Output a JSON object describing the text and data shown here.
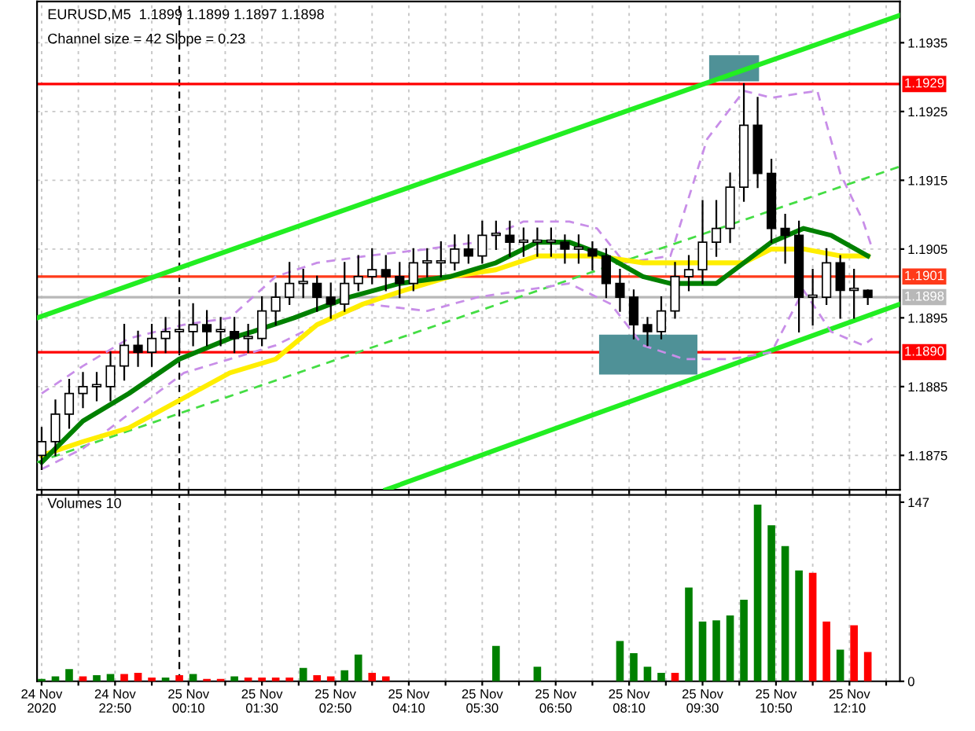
{
  "chart_data": [
    {
      "type": "candlestick",
      "title": "EURUSD,M5  1.1899 1.1899 1.1897 1.1898",
      "subtitle": "Channel size = 42 Slope = 0.23",
      "x": [
        "2020-11-24T21:30",
        "2020-11-24T21:45",
        "2020-11-24T22:00",
        "2020-11-24T22:15",
        "2020-11-24T22:30",
        "2020-11-24T22:45",
        "2020-11-24T23:00",
        "2020-11-24T23:15",
        "2020-11-24T23:30",
        "2020-11-24T23:45",
        "2020-11-25T00:00",
        "2020-11-25T00:15",
        "2020-11-25T00:30",
        "2020-11-25T00:45",
        "2020-11-25T01:00",
        "2020-11-25T01:15",
        "2020-11-25T01:30",
        "2020-11-25T01:45",
        "2020-11-25T02:00",
        "2020-11-25T02:15",
        "2020-11-25T02:30",
        "2020-11-25T02:45",
        "2020-11-25T03:00",
        "2020-11-25T03:15",
        "2020-11-25T03:30",
        "2020-11-25T03:45",
        "2020-11-25T04:00",
        "2020-11-25T04:15",
        "2020-11-25T04:30",
        "2020-11-25T04:45",
        "2020-11-25T05:00",
        "2020-11-25T05:15",
        "2020-11-25T05:30",
        "2020-11-25T05:45",
        "2020-11-25T06:00",
        "2020-11-25T06:15",
        "2020-11-25T06:30",
        "2020-11-25T06:45",
        "2020-11-25T07:00",
        "2020-11-25T07:15",
        "2020-11-25T07:30",
        "2020-11-25T07:45",
        "2020-11-25T08:00",
        "2020-11-25T08:15",
        "2020-11-25T08:30",
        "2020-11-25T08:45",
        "2020-11-25T09:00",
        "2020-11-25T09:15",
        "2020-11-25T09:30",
        "2020-11-25T09:45",
        "2020-11-25T10:00",
        "2020-11-25T10:15",
        "2020-11-25T10:30",
        "2020-11-25T10:45",
        "2020-11-25T11:00",
        "2020-11-25T11:15",
        "2020-11-25T11:30",
        "2020-11-25T11:45",
        "2020-11-25T12:00",
        "2020-11-25T12:15",
        "2020-11-25T12:30"
      ],
      "ohlc": [
        [
          1.1875,
          1.1879,
          1.1873,
          1.1877
        ],
        [
          1.1877,
          1.1883,
          1.1875,
          1.1881
        ],
        [
          1.1881,
          1.1886,
          1.1879,
          1.1884
        ],
        [
          1.1884,
          1.1887,
          1.1882,
          1.1885
        ],
        [
          1.1885,
          1.1887,
          1.1883,
          1.1885
        ],
        [
          1.1885,
          1.189,
          1.1883,
          1.1888
        ],
        [
          1.1888,
          1.1894,
          1.1886,
          1.1891
        ],
        [
          1.1891,
          1.1893,
          1.1888,
          1.189
        ],
        [
          1.189,
          1.1894,
          1.1888,
          1.1892
        ],
        [
          1.1892,
          1.1895,
          1.189,
          1.1893
        ],
        [
          1.1893,
          1.1896,
          1.189,
          1.1893
        ],
        [
          1.1893,
          1.1897,
          1.1891,
          1.1894
        ],
        [
          1.1894,
          1.1896,
          1.1891,
          1.1893
        ],
        [
          1.1893,
          1.1895,
          1.1891,
          1.1893
        ],
        [
          1.1893,
          1.1895,
          1.189,
          1.1892
        ],
        [
          1.1892,
          1.1894,
          1.189,
          1.1892
        ],
        [
          1.1892,
          1.1898,
          1.1891,
          1.1896
        ],
        [
          1.1896,
          1.19,
          1.1894,
          1.1898
        ],
        [
          1.1898,
          1.1903,
          1.1897,
          1.19
        ],
        [
          1.19,
          1.1902,
          1.1898,
          1.19
        ],
        [
          1.19,
          1.1901,
          1.1896,
          1.1898
        ],
        [
          1.1898,
          1.19,
          1.1895,
          1.1897
        ],
        [
          1.1897,
          1.1903,
          1.1896,
          1.19
        ],
        [
          1.19,
          1.1904,
          1.1899,
          1.1901
        ],
        [
          1.1901,
          1.1905,
          1.19,
          1.1902
        ],
        [
          1.1902,
          1.1904,
          1.1899,
          1.1901
        ],
        [
          1.1901,
          1.1903,
          1.1898,
          1.19
        ],
        [
          1.19,
          1.1905,
          1.1899,
          1.1903
        ],
        [
          1.1903,
          1.1905,
          1.1901,
          1.1903
        ],
        [
          1.1903,
          1.1906,
          1.1901,
          1.1903
        ],
        [
          1.1903,
          1.1907,
          1.1902,
          1.1905
        ],
        [
          1.1905,
          1.1907,
          1.1903,
          1.1904
        ],
        [
          1.1904,
          1.1909,
          1.1903,
          1.1907
        ],
        [
          1.1907,
          1.1909,
          1.1905,
          1.1907
        ],
        [
          1.1907,
          1.1909,
          1.1904,
          1.1906
        ],
        [
          1.1906,
          1.1908,
          1.1904,
          1.1906
        ],
        [
          1.1906,
          1.1908,
          1.1904,
          1.1906
        ],
        [
          1.1906,
          1.1908,
          1.1904,
          1.1906
        ],
        [
          1.1906,
          1.1907,
          1.1903,
          1.1905
        ],
        [
          1.1905,
          1.1907,
          1.1903,
          1.1905
        ],
        [
          1.1905,
          1.1906,
          1.1902,
          1.1904
        ],
        [
          1.1904,
          1.1905,
          1.1898,
          1.19
        ],
        [
          1.19,
          1.1902,
          1.1896,
          1.1898
        ],
        [
          1.1898,
          1.1899,
          1.1892,
          1.1894
        ],
        [
          1.1894,
          1.1895,
          1.1891,
          1.1893
        ],
        [
          1.1893,
          1.1898,
          1.1892,
          1.1896
        ],
        [
          1.1896,
          1.1903,
          1.1895,
          1.1901
        ],
        [
          1.1901,
          1.1904,
          1.1899,
          1.1902
        ],
        [
          1.1902,
          1.1912,
          1.19,
          1.1906
        ],
        [
          1.1906,
          1.1912,
          1.1904,
          1.1908
        ],
        [
          1.1908,
          1.1916,
          1.1906,
          1.1914
        ],
        [
          1.1914,
          1.1929,
          1.1912,
          1.1923
        ],
        [
          1.1923,
          1.1927,
          1.1914,
          1.1916
        ],
        [
          1.1916,
          1.1918,
          1.1906,
          1.1908
        ],
        [
          1.1908,
          1.191,
          1.1903,
          1.1907
        ],
        [
          1.1907,
          1.1909,
          1.1893,
          1.1898
        ],
        [
          1.1898,
          1.1902,
          1.1894,
          1.1898
        ],
        [
          1.1898,
          1.1905,
          1.1897,
          1.1903
        ],
        [
          1.1903,
          1.1904,
          1.1895,
          1.1899
        ],
        [
          1.1899,
          1.1902,
          1.1895,
          1.1899
        ],
        [
          1.1899,
          1.1899,
          1.1897,
          1.1898
        ]
      ],
      "series": [
        {
          "type": "line",
          "color": "#22ee22",
          "x": [
            "2020-11-24T21:25",
            "2020-11-25T13:05"
          ],
          "values": [
            1.1895,
            1.1939
          ]
        },
        {
          "type": "line",
          "color": "#22ee22",
          "x": [
            "2020-11-25T03:45",
            "2020-11-25T13:05"
          ],
          "values": [
            1.187,
            1.1897
          ]
        },
        {
          "type": "line",
          "color": "#44dd44",
          "line_style": "dashed",
          "x": [
            "2020-11-24T21:25",
            "2020-11-25T13:05"
          ],
          "values": [
            1.1874,
            1.1917
          ]
        },
        {
          "type": "line",
          "color": "#c88ee8",
          "line_style": "dashed",
          "x": [
            "2020-11-24T21:30",
            "2020-11-24T22:15",
            "2020-11-24T23:05",
            "2020-11-25T00:05",
            "2020-11-25T00:55",
            "2020-11-25T01:45",
            "2020-11-25T02:30",
            "2020-11-25T03:25",
            "2020-11-25T04:30",
            "2020-11-25T05:25",
            "2020-11-25T06:15",
            "2020-11-25T07:05",
            "2020-11-25T07:35",
            "2020-11-25T08:05",
            "2020-11-25T08:55",
            "2020-11-25T09:35",
            "2020-11-25T10:15",
            "2020-11-25T10:45",
            "2020-11-25T11:35",
            "2020-11-25T12:00",
            "2020-11-25T12:25",
            "2020-11-25T12:35"
          ],
          "values": [
            1.1884,
            1.1888,
            1.1892,
            1.1894,
            1.1895,
            1.1901,
            1.1903,
            1.1904,
            1.1905,
            1.1906,
            1.1909,
            1.1909,
            1.1908,
            1.1903,
            1.1904,
            1.1921,
            1.1928,
            1.1927,
            1.1928,
            1.1916,
            1.1909,
            1.1905
          ]
        },
        {
          "type": "line",
          "color": "#c88ee8",
          "line_style": "dashed",
          "x": [
            "2020-11-24T21:30",
            "2020-11-24T22:15",
            "2020-11-24T23:05",
            "2020-11-25T00:05",
            "2020-11-25T00:55",
            "2020-11-25T01:45",
            "2020-11-25T02:30",
            "2020-11-25T03:25",
            "2020-11-25T04:30",
            "2020-11-25T05:25",
            "2020-11-25T06:15",
            "2020-11-25T07:05",
            "2020-11-25T07:50",
            "2020-11-25T08:25",
            "2020-11-25T09:10",
            "2020-11-25T10:00",
            "2020-11-25T10:45",
            "2020-11-25T11:20",
            "2020-11-25T11:50",
            "2020-11-25T12:25",
            "2020-11-25T12:35"
          ],
          "values": [
            1.1873,
            1.1876,
            1.1881,
            1.1887,
            1.1889,
            1.1891,
            1.1894,
            1.1897,
            1.1896,
            1.1898,
            1.1899,
            1.19,
            1.1897,
            1.1891,
            1.1889,
            1.1889,
            1.189,
            1.1899,
            1.1893,
            1.1891,
            1.1892
          ]
        },
        {
          "type": "line",
          "color": "#ffee00",
          "x": [
            "2020-11-24T21:30",
            "2020-11-24T22:15",
            "2020-11-24T23:05",
            "2020-11-25T00:00",
            "2020-11-25T00:55",
            "2020-11-25T01:45",
            "2020-11-25T02:30",
            "2020-11-25T03:20",
            "2020-11-25T04:05",
            "2020-11-25T04:55",
            "2020-11-25T05:45",
            "2020-11-25T06:30",
            "2020-11-25T07:35",
            "2020-11-25T08:25",
            "2020-11-25T09:10",
            "2020-11-25T10:15",
            "2020-11-25T10:45",
            "2020-11-25T11:20",
            "2020-11-25T12:00",
            "2020-11-25T12:30"
          ],
          "values": [
            1.1875,
            1.1877,
            1.1879,
            1.1883,
            1.1887,
            1.1889,
            1.1894,
            1.1897,
            1.1899,
            1.1901,
            1.1902,
            1.1904,
            1.1904,
            1.1903,
            1.1903,
            1.1903,
            1.1905,
            1.1905,
            1.1904,
            1.1904
          ]
        },
        {
          "type": "line",
          "color": "#008000",
          "x": [
            "2020-11-24T21:30",
            "2020-11-24T22:15",
            "2020-11-24T23:05",
            "2020-11-25T00:00",
            "2020-11-25T00:55",
            "2020-11-25T01:20",
            "2020-11-25T02:05",
            "2020-11-25T03:05",
            "2020-11-25T04:00",
            "2020-11-25T04:55",
            "2020-11-25T05:45",
            "2020-11-25T06:30",
            "2020-11-25T07:05",
            "2020-11-25T07:45",
            "2020-11-25T08:25",
            "2020-11-25T08:55",
            "2020-11-25T09:45",
            "2020-11-25T10:15",
            "2020-11-25T10:45",
            "2020-11-25T11:20",
            "2020-11-25T11:50",
            "2020-11-25T12:30"
          ],
          "values": [
            1.1874,
            1.188,
            1.1884,
            1.1889,
            1.1892,
            1.1893,
            1.1895,
            1.1898,
            1.19,
            1.1901,
            1.1903,
            1.1906,
            1.1906,
            1.1904,
            1.1901,
            1.19,
            1.19,
            1.1903,
            1.1906,
            1.1908,
            1.1907,
            1.1904
          ]
        }
      ],
      "xlim": [
        "2020-11-24T21:25",
        "2020-11-25T13:05"
      ],
      "xticks": [
        {
          "value": "2020-11-24T21:30",
          "label": null
        },
        {
          "value": "2020-11-24T22:10",
          "label": null
        },
        {
          "value": "2020-11-24T22:50",
          "label": null
        },
        {
          "value": "2020-11-24T23:30",
          "label": null
        },
        {
          "value": "2020-11-25T00:10",
          "label": null
        },
        {
          "value": "2020-11-25T00:50",
          "label": null
        },
        {
          "value": "2020-11-25T01:30",
          "label": null
        },
        {
          "value": "2020-11-25T02:10",
          "label": null
        },
        {
          "value": "2020-11-25T02:50",
          "label": null
        },
        {
          "value": "2020-11-25T03:30",
          "label": null
        },
        {
          "value": "2020-11-25T04:10",
          "label": null
        },
        {
          "value": "2020-11-25T04:50",
          "label": null
        },
        {
          "value": "2020-11-25T05:30",
          "label": null
        },
        {
          "value": "2020-11-25T06:10",
          "label": null
        },
        {
          "value": "2020-11-25T06:50",
          "label": null
        },
        {
          "value": "2020-11-25T07:30",
          "label": null
        },
        {
          "value": "2020-11-25T08:10",
          "label": null
        },
        {
          "value": "2020-11-25T08:50",
          "label": null
        },
        {
          "value": "2020-11-25T09:30",
          "label": null
        },
        {
          "value": "2020-11-25T10:10",
          "label": null
        },
        {
          "value": "2020-11-25T10:50",
          "label": null
        },
        {
          "value": "2020-11-25T11:30",
          "label": null
        },
        {
          "value": "2020-11-25T12:10",
          "label": null
        },
        {
          "value": "2020-11-25T12:50",
          "label": null
        }
      ],
      "ylim": [
        1.187,
        1.1941
      ],
      "yticks": [
        1.1875,
        1.1885,
        1.1895,
        1.1905,
        1.1915,
        1.1925,
        1.1935
      ],
      "tick_labels": "y",
      "grid": true,
      "legend": false,
      "ref_lines": [
        {
          "axis": "y",
          "value": 1.1929,
          "label": "1.1929",
          "color": "#ff0000"
        },
        {
          "axis": "y",
          "value": 1.1901,
          "label": "1.1901",
          "color": "#ff3a1a"
        },
        {
          "axis": "y",
          "value": 1.189,
          "label": "1.1890",
          "color": "#ff0000"
        },
        {
          "axis": "y",
          "value": 1.1898,
          "label": "1.1898",
          "color": "#b8b8b8"
        },
        {
          "axis": "x",
          "value": "2020-11-25T00:00",
          "color": "#000000",
          "line_style": "dashed"
        }
      ]
    },
    {
      "type": "bar",
      "title": "Volumes 10",
      "x": [
        "2020-11-24T21:30",
        "2020-11-24T21:45",
        "2020-11-24T22:00",
        "2020-11-24T22:15",
        "2020-11-24T22:30",
        "2020-11-24T22:45",
        "2020-11-24T23:00",
        "2020-11-24T23:15",
        "2020-11-24T23:30",
        "2020-11-24T23:45",
        "2020-11-25T00:00",
        "2020-11-25T00:15",
        "2020-11-25T00:30",
        "2020-11-25T00:45",
        "2020-11-25T01:00",
        "2020-11-25T01:15",
        "2020-11-25T01:30",
        "2020-11-25T01:45",
        "2020-11-25T02:00",
        "2020-11-25T02:15",
        "2020-11-25T02:30",
        "2020-11-25T02:45",
        "2020-11-25T03:00",
        "2020-11-25T03:15",
        "2020-11-25T03:30",
        "2020-11-25T03:45",
        "2020-11-25T04:00",
        "2020-11-25T04:15",
        "2020-11-25T04:30",
        "2020-11-25T04:45",
        "2020-11-25T05:00",
        "2020-11-25T05:15",
        "2020-11-25T05:30",
        "2020-11-25T05:45",
        "2020-11-25T06:00",
        "2020-11-25T06:15",
        "2020-11-25T06:30",
        "2020-11-25T06:45",
        "2020-11-25T07:00",
        "2020-11-25T07:15",
        "2020-11-25T07:30",
        "2020-11-25T07:45",
        "2020-11-25T08:00",
        "2020-11-25T08:15",
        "2020-11-25T08:30",
        "2020-11-25T08:45",
        "2020-11-25T09:00",
        "2020-11-25T09:15",
        "2020-11-25T09:30",
        "2020-11-25T09:45",
        "2020-11-25T10:00",
        "2020-11-25T10:15",
        "2020-11-25T10:30",
        "2020-11-25T10:45",
        "2020-11-25T11:00",
        "2020-11-25T11:15",
        "2020-11-25T11:30",
        "2020-11-25T11:45",
        "2020-11-25T12:00",
        "2020-11-25T12:15",
        "2020-11-25T12:30"
      ],
      "values": [
        2,
        4,
        10,
        4,
        5,
        6,
        6,
        7,
        3,
        3,
        5,
        6,
        2,
        2,
        4,
        3,
        3,
        3,
        3,
        11,
        5,
        4,
        9,
        22,
        7,
        4,
        null,
        null,
        null,
        null,
        null,
        null,
        null,
        29,
        null,
        null,
        12,
        null,
        null,
        null,
        null,
        null,
        33,
        23,
        12,
        7,
        7,
        77,
        49,
        50,
        54,
        67,
        145,
        128,
        111,
        91,
        89,
        49,
        26,
        46,
        24
      ],
      "colors": [
        "#008000",
        "#008000",
        "#008000",
        "#ff0000",
        "#008000",
        "#008000",
        "#ff0000",
        "#ff0000",
        "#ff0000",
        "#008000",
        "#ff0000",
        "#008000",
        "#ff0000",
        "#ff0000",
        "#008000",
        "#ff0000",
        "#ff0000",
        "#ff0000",
        "#ff0000",
        "#008000",
        "#ff0000",
        "#ff0000",
        "#008000",
        "#008000",
        "#ff0000",
        "#ff0000",
        "#008000",
        "#008000",
        "#008000",
        "#008000",
        "#008000",
        "#008000",
        "#008000",
        "#008000",
        "#008000",
        "#008000",
        "#008000",
        "#008000",
        "#008000",
        "#008000",
        "#008000",
        "#008000",
        "#008000",
        "#008000",
        "#008000",
        "#008000",
        "#ff0000",
        "#008000",
        "#008000",
        "#008000",
        "#008000",
        "#008000",
        "#008000",
        "#008000",
        "#008000",
        "#008000",
        "#ff0000",
        "#ff0000",
        "#008000",
        "#ff0000",
        "#ff0000"
      ],
      "xlim": [
        "2020-11-24T21:25",
        "2020-11-25T13:05"
      ],
      "xticks": [
        {
          "value": "2020-11-24T21:30",
          "label": "24 Nov 2020"
        },
        {
          "value": "2020-11-24T22:10",
          "label": null
        },
        {
          "value": "2020-11-24T22:50",
          "label": "24 Nov 22:50"
        },
        {
          "value": "2020-11-24T23:30",
          "label": null
        },
        {
          "value": "2020-11-25T00:10",
          "label": "25 Nov 00:10"
        },
        {
          "value": "2020-11-25T00:50",
          "label": null
        },
        {
          "value": "2020-11-25T01:30",
          "label": "25 Nov 01:30"
        },
        {
          "value": "2020-11-25T02:10",
          "label": null
        },
        {
          "value": "2020-11-25T02:50",
          "label": "25 Nov 02:50"
        },
        {
          "value": "2020-11-25T03:30",
          "label": null
        },
        {
          "value": "2020-11-25T04:10",
          "label": "25 Nov 04:10"
        },
        {
          "value": "2020-11-25T04:50",
          "label": null
        },
        {
          "value": "2020-11-25T05:30",
          "label": "25 Nov 05:30"
        },
        {
          "value": "2020-11-25T06:10",
          "label": null
        },
        {
          "value": "2020-11-25T06:50",
          "label": "25 Nov 06:50"
        },
        {
          "value": "2020-11-25T07:30",
          "label": null
        },
        {
          "value": "2020-11-25T08:10",
          "label": "25 Nov 08:10"
        },
        {
          "value": "2020-11-25T08:50",
          "label": null
        },
        {
          "value": "2020-11-25T09:30",
          "label": "25 Nov 09:30"
        },
        {
          "value": "2020-11-25T10:10",
          "label": null
        },
        {
          "value": "2020-11-25T10:50",
          "label": "25 Nov 10:50"
        },
        {
          "value": "2020-11-25T11:30",
          "label": null
        },
        {
          "value": "2020-11-25T12:10",
          "label": "25 Nov 12:10"
        },
        {
          "value": "2020-11-25T12:50",
          "label": null
        }
      ],
      "ylim": [
        0,
        153
      ],
      "yticks": [
        0,
        147
      ],
      "grid": "x",
      "legend": false,
      "ref_lines": [
        {
          "axis": "x",
          "value": "2020-11-25T00:00",
          "color": "#000000",
          "line_style": "dashed"
        }
      ]
    }
  ]
}
